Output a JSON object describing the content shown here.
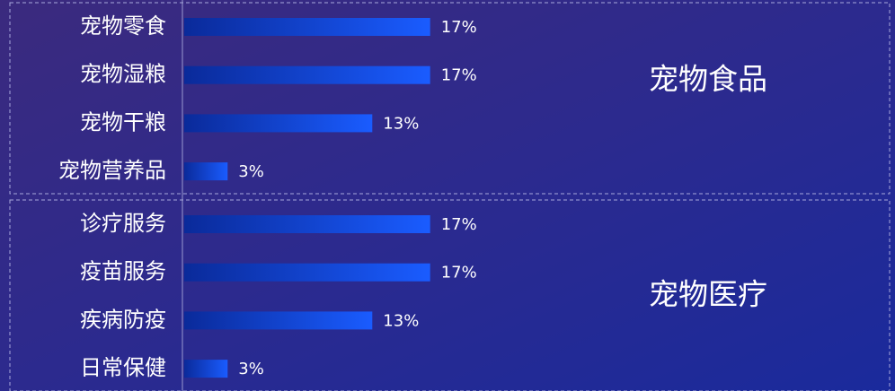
{
  "chart_data": [
    {
      "type": "bar",
      "orientation": "horizontal",
      "label": "宠物食品",
      "categories": [
        "宠物零食",
        "宠物湿粮",
        "宠物干粮",
        "宠物营养品"
      ],
      "values": [
        17,
        17,
        13,
        3
      ],
      "value_labels": [
        "17%",
        "17%",
        "13%",
        "3%"
      ],
      "color": "#1a5cff"
    },
    {
      "type": "bar",
      "orientation": "horizontal",
      "label": "宠物医疗",
      "categories": [
        "诊疗服务",
        "疫苗服务",
        "疾病防疫",
        "日常保健"
      ],
      "values": [
        17,
        17,
        13,
        3
      ],
      "value_labels": [
        "17%",
        "17%",
        "13%",
        "3%"
      ],
      "color": "#1a5cff"
    }
  ]
}
